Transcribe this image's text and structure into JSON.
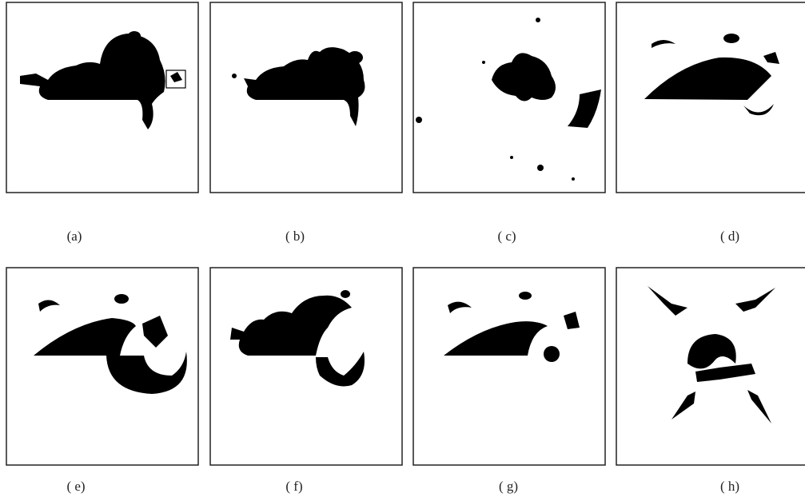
{
  "panels": [
    {
      "label": "(a)"
    },
    {
      "label": "( b)"
    },
    {
      "label": "( c)"
    },
    {
      "label": "( d)"
    },
    {
      "label": "( e)"
    },
    {
      "label": "( f)"
    },
    {
      "label": "( g)"
    },
    {
      "label": "( h)"
    }
  ]
}
